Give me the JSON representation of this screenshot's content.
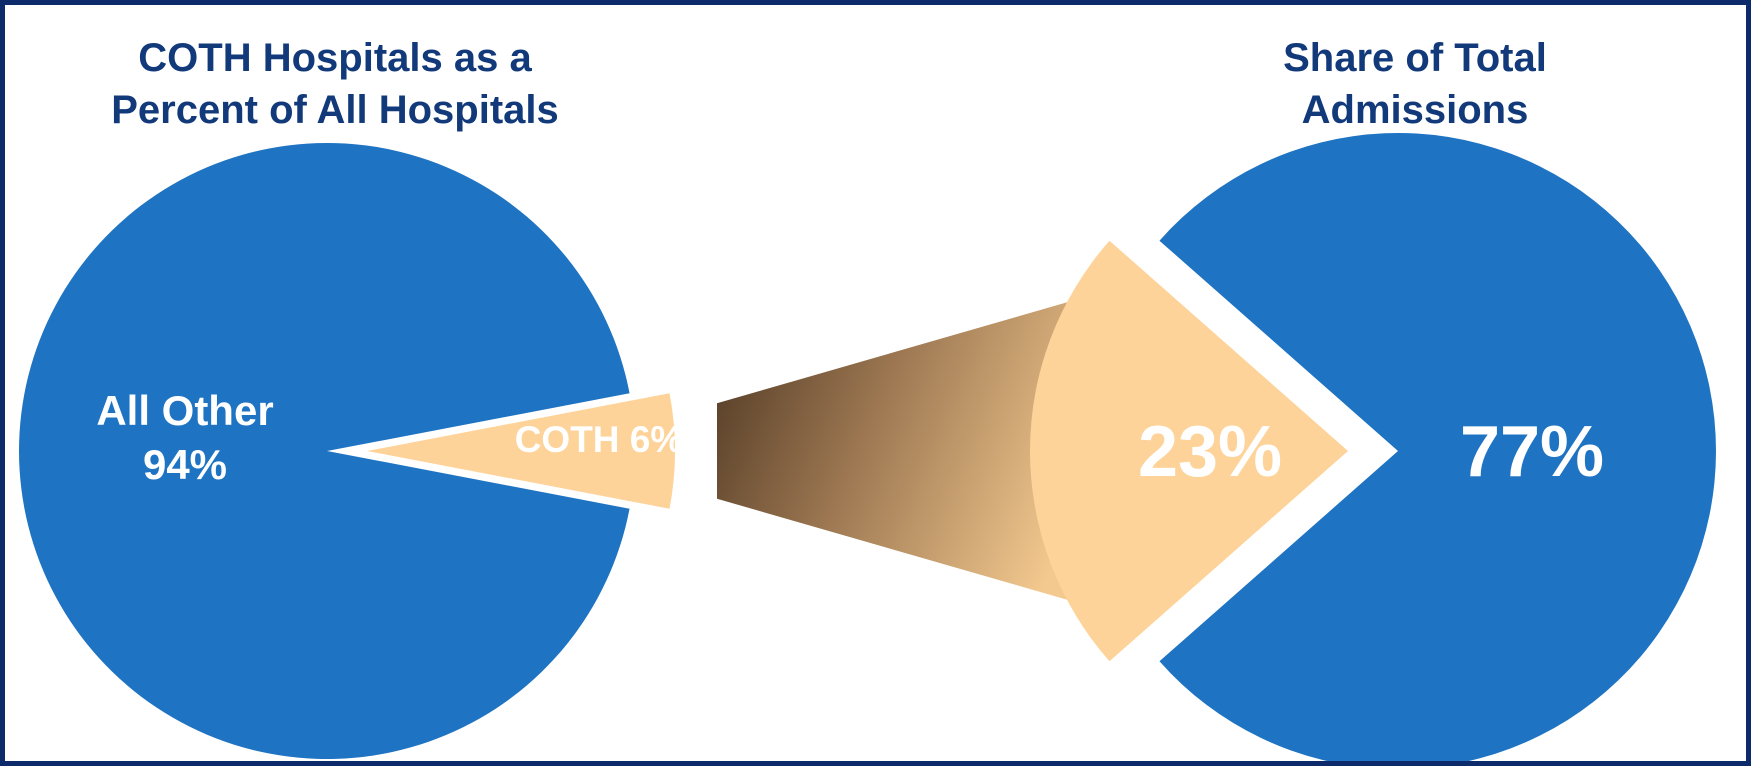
{
  "charts": {
    "left_title_line1": "COTH Hospitals as a",
    "left_title_line2": "Percent of All Hospitals",
    "right_title_line1": "Share of Total",
    "right_title_line2": "Admissions",
    "left_big_label_line1": "All Other",
    "left_big_label_line2": "94%",
    "left_small_label": "COTH 6%",
    "right_small_label": "23%",
    "right_big_label": "77%"
  },
  "colors": {
    "pie_blue": "#1e73c2",
    "slice_peach": "#fdd39a",
    "connector_dark": "#4a3420",
    "frame_navy": "#0d2b6b",
    "title_navy": "#123a7a",
    "label_white": "#ffffff"
  },
  "chart_data": [
    {
      "type": "pie",
      "title": "COTH Hospitals as a Percent of All Hospitals",
      "categories": [
        "All Other",
        "COTH"
      ],
      "values": [
        94,
        6
      ],
      "unit": "%"
    },
    {
      "type": "pie",
      "title": "Share of Total Admissions",
      "categories": [
        "",
        ""
      ],
      "values": [
        77,
        23
      ],
      "unit": "%"
    }
  ]
}
